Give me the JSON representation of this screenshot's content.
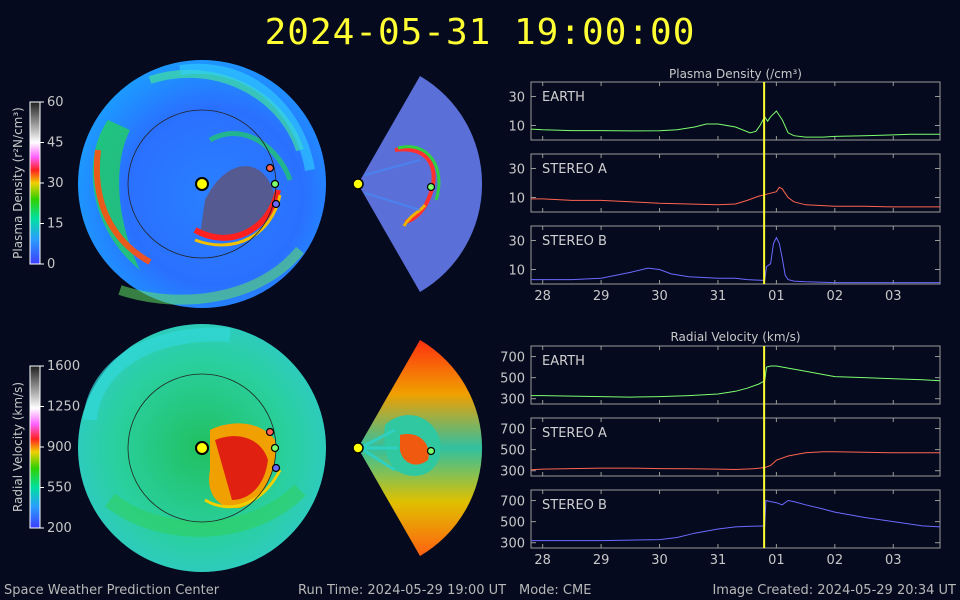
{
  "header": {
    "timestamp": "2024-05-31 19:00:00"
  },
  "footer": {
    "org": "Space Weather Prediction Center",
    "run_time": "Run Time: 2024-05-29 19:00 UT",
    "mode": "Mode: CME",
    "image_created": "Image Created: 2024-05-29 20:34 UT"
  },
  "colors": {
    "earth": "#7dff6e",
    "stereo_a": "#ff6450",
    "stereo_b": "#6a6aff",
    "now_marker": "#ffff33",
    "sun": "#ffff00"
  },
  "colorbars": [
    {
      "label": "Plasma Density (r²N/cm³)",
      "ticks": [
        "60",
        "45",
        "30",
        "15",
        "0"
      ]
    },
    {
      "label": "Radial Velocity (km/s)",
      "ticks": [
        "1600",
        "1250",
        "900",
        "550",
        "200"
      ]
    }
  ],
  "chart_data": [
    {
      "type": "line",
      "title": "Plasma Density (/cm³)",
      "x_tick_labels": [
        "28",
        "29",
        "30",
        "31",
        "01",
        "02",
        "03"
      ],
      "current_time_marker": "2024-05-31 19:00",
      "panels": [
        {
          "name": "EARTH",
          "ylim": [
            0,
            40
          ],
          "yticks": [
            10,
            30
          ],
          "x": [
            27.8,
            28,
            28.5,
            29,
            29.5,
            30,
            30.3,
            30.6,
            30.8,
            31,
            31.3,
            31.55,
            31.65,
            31.72,
            31.8,
            31.85,
            31.9,
            32,
            32.1,
            32.2,
            32.3,
            32.5,
            32.8,
            33,
            33.5,
            34,
            34.3,
            34.8
          ],
          "y": [
            7.5,
            7,
            6.5,
            6.5,
            6.3,
            6.4,
            7,
            9,
            11,
            11,
            9,
            5,
            6,
            10,
            16,
            13,
            16,
            20,
            14,
            5,
            3,
            2,
            2,
            2.5,
            3,
            3.5,
            4,
            4
          ]
        },
        {
          "name": "STEREO A",
          "ylim": [
            0,
            40
          ],
          "yticks": [
            10,
            30
          ],
          "x": [
            27.8,
            28,
            28.5,
            29,
            29.5,
            30,
            30.5,
            31,
            31.3,
            31.5,
            31.7,
            31.9,
            32,
            32.05,
            32.1,
            32.2,
            32.3,
            32.5,
            33,
            33.5,
            34,
            34.8
          ],
          "y": [
            9,
            9,
            8,
            8,
            7,
            6,
            5.5,
            5,
            5.5,
            8,
            11,
            13,
            14,
            17,
            16,
            10,
            7,
            5,
            4,
            4,
            3.5,
            3.5
          ]
        },
        {
          "name": "STEREO B",
          "ylim": [
            0,
            40
          ],
          "yticks": [
            10,
            30
          ],
          "x": [
            27.8,
            28,
            28.5,
            29,
            29.5,
            29.8,
            30,
            30.2,
            30.5,
            31,
            31.3,
            31.5,
            31.8,
            31.83,
            31.9,
            31.95,
            32,
            32.05,
            32.1,
            32.15,
            32.2,
            32.3,
            32.5,
            33,
            33.5,
            34,
            34.8
          ],
          "y": [
            3,
            3,
            3,
            4,
            8,
            11,
            10,
            7,
            5,
            4,
            4,
            3,
            2.5,
            12,
            14,
            28,
            32,
            28,
            18,
            6,
            3,
            2,
            1.5,
            1,
            1,
            1,
            1
          ]
        }
      ]
    },
    {
      "type": "line",
      "title": "Radial Velocity (km/s)",
      "x_tick_labels": [
        "28",
        "29",
        "30",
        "31",
        "01",
        "02",
        "03"
      ],
      "current_time_marker": "2024-05-31 19:00",
      "panels": [
        {
          "name": "EARTH",
          "ylim": [
            250,
            800
          ],
          "yticks": [
            300,
            500,
            700
          ],
          "x": [
            27.8,
            28,
            28.5,
            29,
            29.5,
            30,
            30.5,
            31,
            31.3,
            31.5,
            31.7,
            31.8,
            31.83,
            31.9,
            32,
            32.2,
            32.5,
            32.8,
            33,
            33.5,
            34,
            34.5,
            34.8
          ],
          "y": [
            330,
            330,
            325,
            320,
            315,
            320,
            330,
            345,
            370,
            400,
            440,
            470,
            600,
            610,
            610,
            590,
            560,
            530,
            510,
            500,
            490,
            480,
            470
          ]
        },
        {
          "name": "STEREO A",
          "ylim": [
            250,
            800
          ],
          "yticks": [
            300,
            500,
            700
          ],
          "x": [
            27.8,
            28,
            28.5,
            29,
            29.5,
            30,
            30.5,
            31,
            31.3,
            31.6,
            31.8,
            31.9,
            32,
            32.2,
            32.5,
            32.8,
            33,
            33.5,
            34,
            34.5,
            34.8
          ],
          "y": [
            310,
            315,
            320,
            325,
            325,
            320,
            318,
            315,
            312,
            318,
            330,
            350,
            400,
            440,
            470,
            480,
            480,
            475,
            470,
            470,
            470
          ]
        },
        {
          "name": "STEREO B",
          "ylim": [
            250,
            800
          ],
          "yticks": [
            300,
            500,
            700
          ],
          "x": [
            27.8,
            28,
            28.5,
            29,
            29.5,
            30,
            30.3,
            30.6,
            31,
            31.3,
            31.5,
            31.8,
            31.82,
            31.9,
            32,
            32.1,
            32.2,
            32.3,
            32.5,
            32.8,
            33,
            33.5,
            34,
            34.5,
            34.8
          ],
          "y": [
            320,
            320,
            320,
            320,
            325,
            330,
            350,
            390,
            430,
            450,
            455,
            460,
            700,
            690,
            680,
            660,
            700,
            690,
            660,
            620,
            590,
            540,
            500,
            460,
            450
          ]
        }
      ]
    }
  ]
}
